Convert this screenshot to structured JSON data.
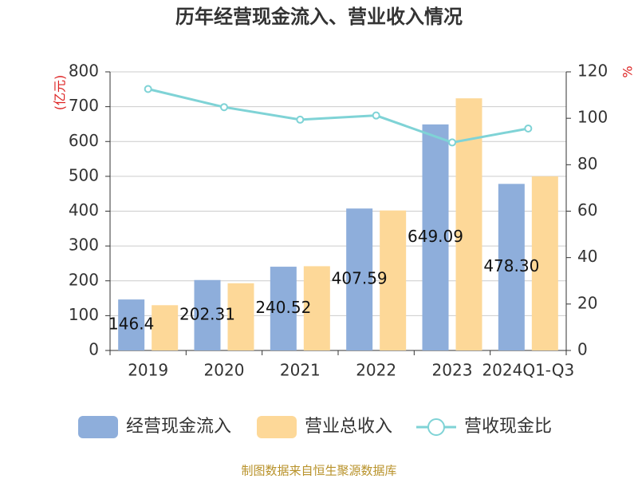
{
  "chart_data": {
    "type": "bar-line",
    "title": "历年经营现金流入、营业收入情况",
    "y_label": "(亿元)",
    "y2_label": "%",
    "categories": [
      "2019",
      "2020",
      "2021",
      "2022",
      "2023",
      "2024Q1-Q3"
    ],
    "series": [
      {
        "name": "经营现金流入",
        "type": "bar",
        "color": "#8eaedb",
        "values": [
          146.4,
          202.31,
          240.52,
          407.59,
          649.09,
          478.3
        ],
        "value_labels": [
          "146.4",
          "202.31",
          "240.52",
          "407.59",
          "649.09",
          "478.30"
        ]
      },
      {
        "name": "营业总收入",
        "type": "bar",
        "color": "#fdd898",
        "values": [
          130,
          193,
          242,
          402,
          724,
          500
        ]
      },
      {
        "name": "营收现金比",
        "type": "line",
        "axis": "y2",
        "color": "#7fd3d6",
        "values": [
          112.6,
          104.8,
          99.4,
          101.2,
          89.6,
          95.6
        ]
      }
    ],
    "ylim": [
      0,
      800
    ],
    "yticks": [
      0,
      100,
      200,
      300,
      400,
      500,
      600,
      700,
      800
    ],
    "y2lim": [
      0,
      120
    ],
    "y2ticks": [
      0,
      20,
      40,
      60,
      80,
      100,
      120
    ],
    "grid": true,
    "legend": "bottom",
    "source": "制图数据来自恒生聚源数据库"
  }
}
